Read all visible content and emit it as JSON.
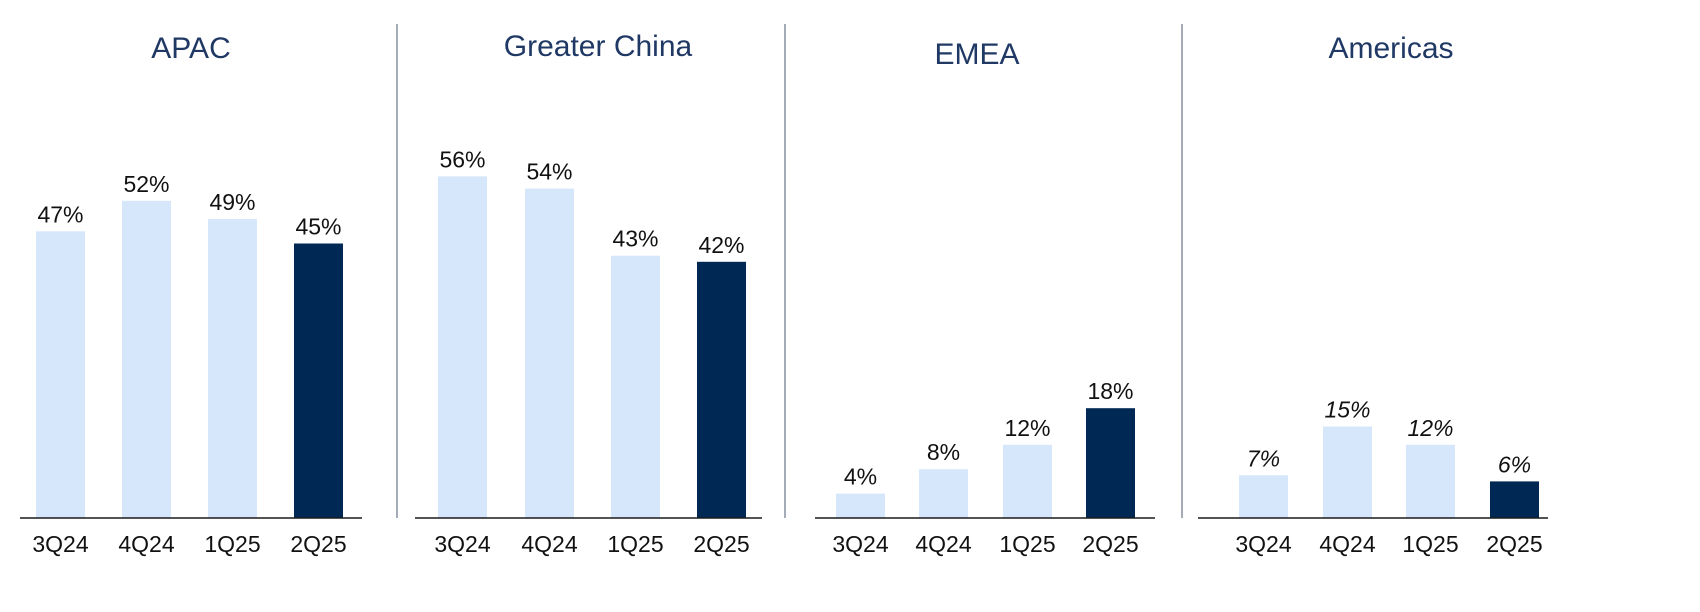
{
  "chart_data": [
    {
      "type": "bar",
      "title": "APAC",
      "categories": [
        "3Q24",
        "4Q24",
        "1Q25",
        "2Q25"
      ],
      "values": [
        47,
        52,
        49,
        45
      ],
      "data_labels": [
        "47%",
        "52%",
        "49%",
        "45%"
      ],
      "italic_labels": false,
      "ylim": [
        0,
        60
      ],
      "grid": false,
      "legend": "none"
    },
    {
      "type": "bar",
      "title": "Greater China",
      "categories": [
        "3Q24",
        "4Q24",
        "1Q25",
        "2Q25"
      ],
      "values": [
        56,
        54,
        43,
        42
      ],
      "data_labels": [
        "56%",
        "54%",
        "43%",
        "42%"
      ],
      "italic_labels": false,
      "ylim": [
        0,
        60
      ],
      "grid": false,
      "legend": "none"
    },
    {
      "type": "bar",
      "title": "EMEA",
      "categories": [
        "3Q24",
        "4Q24",
        "1Q25",
        "2Q25"
      ],
      "values": [
        4,
        8,
        12,
        18
      ],
      "data_labels": [
        "4%",
        "8%",
        "12%",
        "18%"
      ],
      "italic_labels": false,
      "ylim": [
        0,
        60
      ],
      "grid": false,
      "legend": "none"
    },
    {
      "type": "bar",
      "title": "Americas",
      "categories": [
        "3Q24",
        "4Q24",
        "1Q25",
        "2Q25"
      ],
      "values": [
        7,
        15,
        12,
        6
      ],
      "data_labels": [
        "7%",
        "15%",
        "12%",
        "6%"
      ],
      "italic_labels": true,
      "ylim": [
        0,
        60
      ],
      "grid": false,
      "legend": "none"
    }
  ],
  "colors": {
    "bar_light": "#d6e6fb",
    "bar_highlight": "#002855",
    "title": "#1f3864",
    "axis": "#1a1a1a",
    "divider": "#4a5a70",
    "text": "#111111"
  },
  "highlight_index": 3
}
